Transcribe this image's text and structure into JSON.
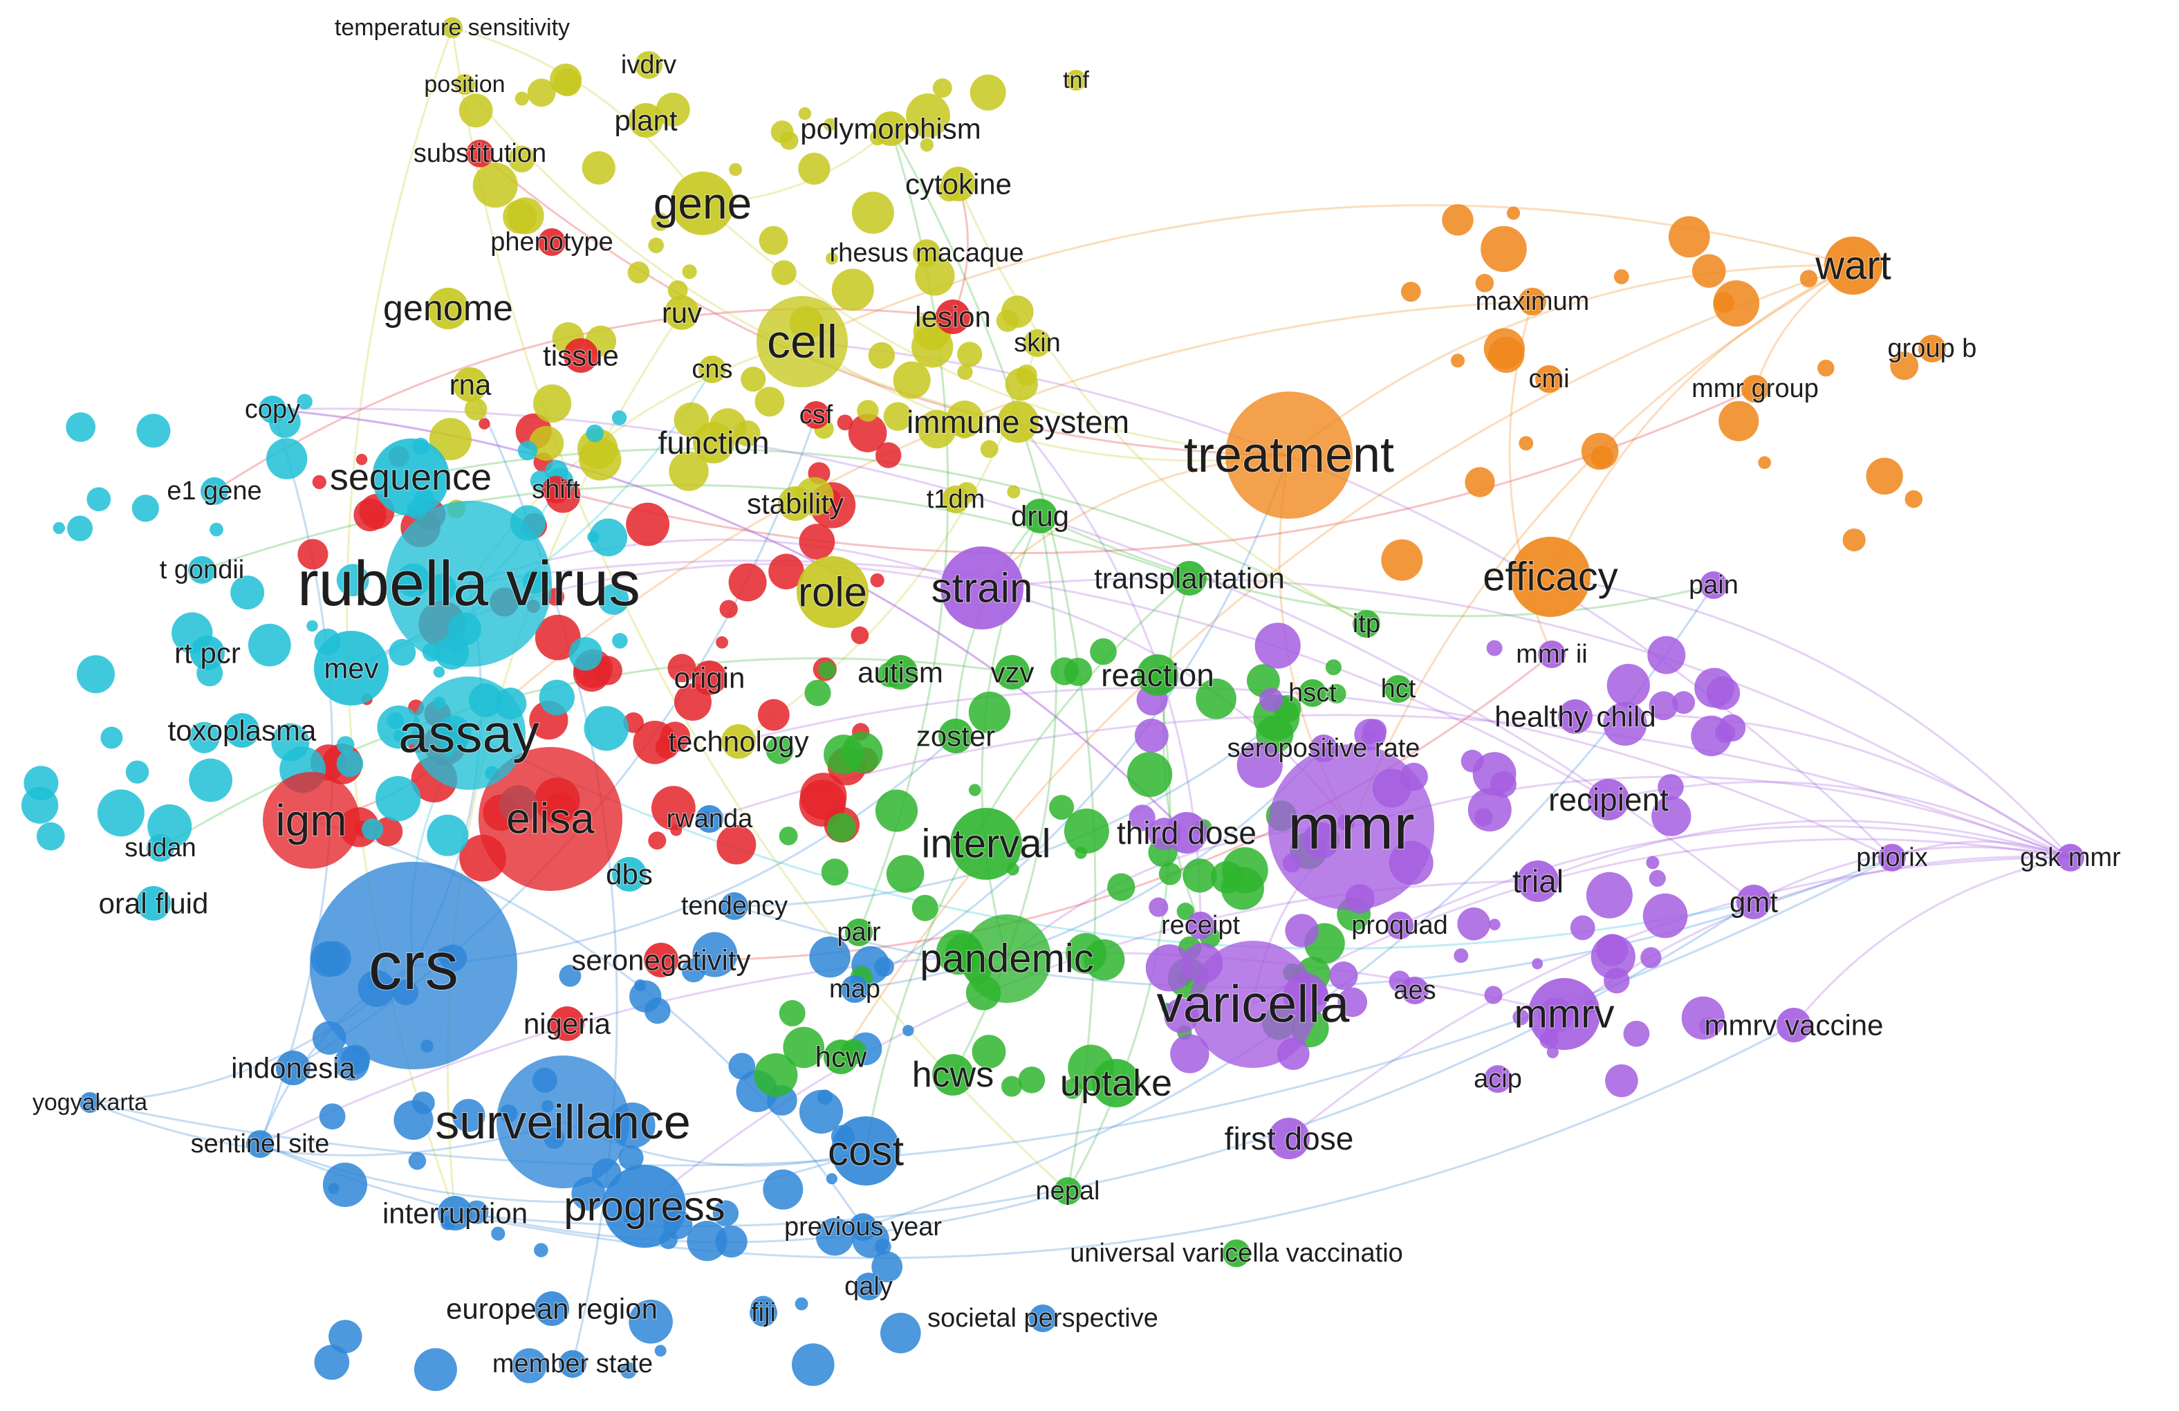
{
  "diagram": {
    "type": "co-occurrence keyword network",
    "colors": {
      "cluster1": "#e4252a",
      "cluster2": "#c7c81f",
      "cluster3": "#1fbfd6",
      "cluster4": "#2f86d7",
      "cluster5": "#2fb52f",
      "cluster6": "#a55ee0",
      "cluster7": "#f0861a"
    },
    "nodes": [
      {
        "label": "temperature sensitivity",
        "cluster": "cluster2",
        "weight": 1
      },
      {
        "label": "position",
        "cluster": "cluster2",
        "weight": 1
      },
      {
        "label": "ivdrv",
        "cluster": "cluster2",
        "weight": 2
      },
      {
        "label": "tnf",
        "cluster": "cluster2",
        "weight": 1
      },
      {
        "label": "plant",
        "cluster": "cluster2",
        "weight": 3
      },
      {
        "label": "polymorphism",
        "cluster": "cluster2",
        "weight": 3
      },
      {
        "label": "substitution",
        "cluster": "cluster1",
        "weight": 2
      },
      {
        "label": "gene",
        "cluster": "cluster2",
        "weight": 5
      },
      {
        "label": "cytokine",
        "cluster": "cluster2",
        "weight": 3
      },
      {
        "label": "phenotype",
        "cluster": "cluster1",
        "weight": 2
      },
      {
        "label": "rhesus macaque",
        "cluster": "cluster2",
        "weight": 2
      },
      {
        "label": "wart",
        "cluster": "cluster7",
        "weight": 4
      },
      {
        "label": "maximum",
        "cluster": "cluster7",
        "weight": 2
      },
      {
        "label": "genome",
        "cluster": "cluster2",
        "weight": 4
      },
      {
        "label": "ruv",
        "cluster": "cluster2",
        "weight": 3
      },
      {
        "label": "cell",
        "cluster": "cluster2",
        "weight": 6
      },
      {
        "label": "lesion",
        "cluster": "cluster1",
        "weight": 3
      },
      {
        "label": "skin",
        "cluster": "cluster2",
        "weight": 2
      },
      {
        "label": "group b",
        "cluster": "cluster7",
        "weight": 2
      },
      {
        "label": "tissue",
        "cluster": "cluster1",
        "weight": 3
      },
      {
        "label": "cns",
        "cluster": "cluster2",
        "weight": 2
      },
      {
        "label": "cmi",
        "cluster": "cluster7",
        "weight": 2
      },
      {
        "label": "mmr group",
        "cluster": "cluster7",
        "weight": 2
      },
      {
        "label": "rna",
        "cluster": "cluster2",
        "weight": 3
      },
      {
        "label": "copy",
        "cluster": "cluster3",
        "weight": 2
      },
      {
        "label": "csf",
        "cluster": "cluster1",
        "weight": 2
      },
      {
        "label": "immune system",
        "cluster": "cluster2",
        "weight": 4
      },
      {
        "label": "function",
        "cluster": "cluster2",
        "weight": 4
      },
      {
        "label": "treatment",
        "cluster": "cluster7",
        "weight": 7
      },
      {
        "label": "sequence",
        "cluster": "cluster3",
        "weight": 5
      },
      {
        "label": "shift",
        "cluster": "cluster1",
        "weight": 2
      },
      {
        "label": "e1 gene",
        "cluster": "cluster3",
        "weight": 2
      },
      {
        "label": "stability",
        "cluster": "cluster2",
        "weight": 3
      },
      {
        "label": "t1dm",
        "cluster": "cluster2",
        "weight": 2
      },
      {
        "label": "drug",
        "cluster": "cluster5",
        "weight": 3
      },
      {
        "label": "t gondii",
        "cluster": "cluster3",
        "weight": 2
      },
      {
        "label": "rubella virus",
        "cluster": "cluster3",
        "weight": 9
      },
      {
        "label": "role",
        "cluster": "cluster2",
        "weight": 5
      },
      {
        "label": "strain",
        "cluster": "cluster6",
        "weight": 6
      },
      {
        "label": "transplantation",
        "cluster": "cluster5",
        "weight": 3
      },
      {
        "label": "efficacy",
        "cluster": "cluster7",
        "weight": 5
      },
      {
        "label": "pain",
        "cluster": "cluster6",
        "weight": 2
      },
      {
        "label": "itp",
        "cluster": "cluster5",
        "weight": 2
      },
      {
        "label": "rt pcr",
        "cluster": "cluster3",
        "weight": 3
      },
      {
        "label": "mev",
        "cluster": "cluster3",
        "weight": 3
      },
      {
        "label": "origin",
        "cluster": "cluster1",
        "weight": 3
      },
      {
        "label": "autism",
        "cluster": "cluster5",
        "weight": 3
      },
      {
        "label": "vzv",
        "cluster": "cluster5",
        "weight": 3
      },
      {
        "label": "reaction",
        "cluster": "cluster5",
        "weight": 4
      },
      {
        "label": "hsct",
        "cluster": "cluster5",
        "weight": 2
      },
      {
        "label": "hct",
        "cluster": "cluster5",
        "weight": 2
      },
      {
        "label": "mmr ii",
        "cluster": "cluster6",
        "weight": 2
      },
      {
        "label": "toxoplasma",
        "cluster": "cluster3",
        "weight": 3
      },
      {
        "label": "assay",
        "cluster": "cluster3",
        "weight": 7
      },
      {
        "label": "technology",
        "cluster": "cluster2",
        "weight": 3
      },
      {
        "label": "zoster",
        "cluster": "cluster5",
        "weight": 3
      },
      {
        "label": "seropositive rate",
        "cluster": "cluster6",
        "weight": 2
      },
      {
        "label": "healthy child",
        "cluster": "cluster6",
        "weight": 3
      },
      {
        "label": "igm",
        "cluster": "cluster1",
        "weight": 6
      },
      {
        "label": "elisa",
        "cluster": "cluster1",
        "weight": 6
      },
      {
        "label": "rwanda",
        "cluster": "cluster4",
        "weight": 2
      },
      {
        "label": "recipient",
        "cluster": "cluster6",
        "weight": 4
      },
      {
        "label": "sudan",
        "cluster": "cluster3",
        "weight": 2
      },
      {
        "label": "interval",
        "cluster": "cluster5",
        "weight": 5
      },
      {
        "label": "third dose",
        "cluster": "cluster6",
        "weight": 4
      },
      {
        "label": "mmr",
        "cluster": "cluster6",
        "weight": 9
      },
      {
        "label": "priorix",
        "cluster": "cluster6",
        "weight": 2
      },
      {
        "label": "gsk mmr",
        "cluster": "cluster6",
        "weight": 2
      },
      {
        "label": "dbs",
        "cluster": "cluster3",
        "weight": 3
      },
      {
        "label": "trial",
        "cluster": "cluster6",
        "weight": 4
      },
      {
        "label": "oral fluid",
        "cluster": "cluster3",
        "weight": 3
      },
      {
        "label": "tendency",
        "cluster": "cluster4",
        "weight": 2
      },
      {
        "label": "gmt",
        "cluster": "cluster6",
        "weight": 3
      },
      {
        "label": "pair",
        "cluster": "cluster5",
        "weight": 2
      },
      {
        "label": "receipt",
        "cluster": "cluster6",
        "weight": 2
      },
      {
        "label": "proquad",
        "cluster": "cluster6",
        "weight": 2
      },
      {
        "label": "crs",
        "cluster": "cluster4",
        "weight": 10
      },
      {
        "label": "seronegativity",
        "cluster": "cluster1",
        "weight": 3
      },
      {
        "label": "pandemic",
        "cluster": "cluster5",
        "weight": 6
      },
      {
        "label": "map",
        "cluster": "cluster4",
        "weight": 2
      },
      {
        "label": "varicella",
        "cluster": "cluster6",
        "weight": 7
      },
      {
        "label": "aes",
        "cluster": "cluster6",
        "weight": 2
      },
      {
        "label": "nigeria",
        "cluster": "cluster1",
        "weight": 3
      },
      {
        "label": "mmrv",
        "cluster": "cluster6",
        "weight": 5
      },
      {
        "label": "mmrv vaccine",
        "cluster": "cluster6",
        "weight": 3
      },
      {
        "label": "indonesia",
        "cluster": "cluster4",
        "weight": 3
      },
      {
        "label": "hcw",
        "cluster": "cluster5",
        "weight": 3
      },
      {
        "label": "hcws",
        "cluster": "cluster5",
        "weight": 4
      },
      {
        "label": "uptake",
        "cluster": "cluster5",
        "weight": 5
      },
      {
        "label": "acip",
        "cluster": "cluster6",
        "weight": 2
      },
      {
        "label": "yogyakarta",
        "cluster": "cluster4",
        "weight": 1
      },
      {
        "label": "surveillance",
        "cluster": "cluster4",
        "weight": 8
      },
      {
        "label": "sentinel site",
        "cluster": "cluster4",
        "weight": 2
      },
      {
        "label": "cost",
        "cluster": "cluster4",
        "weight": 5
      },
      {
        "label": "first dose",
        "cluster": "cluster6",
        "weight": 4
      },
      {
        "label": "nepal",
        "cluster": "cluster5",
        "weight": 2
      },
      {
        "label": "interruption",
        "cluster": "cluster4",
        "weight": 3
      },
      {
        "label": "progress",
        "cluster": "cluster4",
        "weight": 6
      },
      {
        "label": "previous year",
        "cluster": "cluster4",
        "weight": 2
      },
      {
        "label": "universal varicella vaccinatio",
        "cluster": "cluster5",
        "weight": 2
      },
      {
        "label": "european region",
        "cluster": "cluster4",
        "weight": 3
      },
      {
        "label": "fiji",
        "cluster": "cluster4",
        "weight": 2
      },
      {
        "label": "qaly",
        "cluster": "cluster4",
        "weight": 2
      },
      {
        "label": "societal perspective",
        "cluster": "cluster4",
        "weight": 2
      },
      {
        "label": "member state",
        "cluster": "cluster4",
        "weight": 2
      }
    ]
  }
}
